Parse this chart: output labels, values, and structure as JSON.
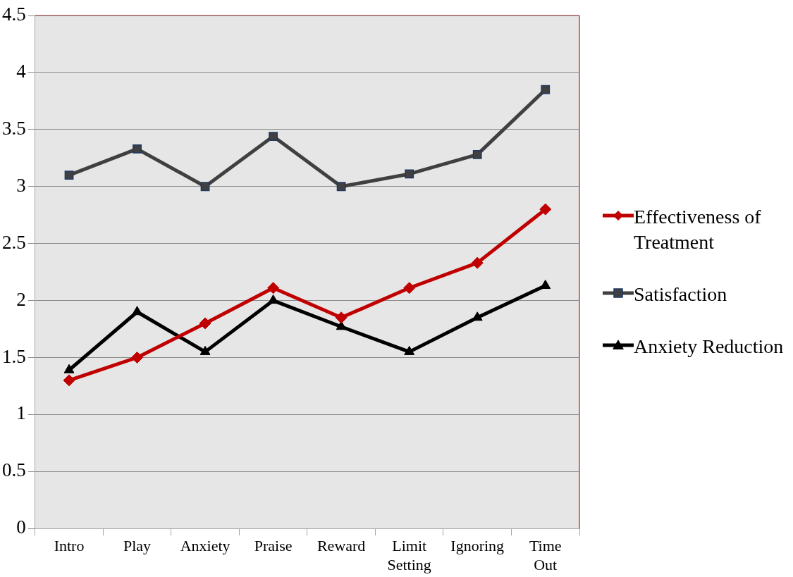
{
  "chart_data": {
    "type": "line",
    "categories": [
      "Intro",
      "Play",
      "Anxiety",
      "Praise",
      "Reward",
      "Limit Setting",
      "Ignoring",
      "Time Out"
    ],
    "series": [
      {
        "name": "Effectiveness of Treatment",
        "color": "#c00000",
        "marker": "diamond",
        "values": [
          1.3,
          1.5,
          1.8,
          2.11,
          1.85,
          2.11,
          2.33,
          2.8
        ]
      },
      {
        "name": "Satisfaction",
        "color": "#404040",
        "marker": "square",
        "values": [
          3.1,
          3.33,
          3.0,
          3.44,
          3.0,
          3.11,
          3.28,
          3.85
        ]
      },
      {
        "name": "Anxiety Reduction",
        "color": "#000000",
        "marker": "triangle",
        "values": [
          1.39,
          1.9,
          1.55,
          2.0,
          1.77,
          1.55,
          1.85,
          2.13
        ]
      }
    ],
    "ylim": [
      0,
      4.5
    ],
    "yticks": [
      0,
      0.5,
      1,
      1.5,
      2,
      2.5,
      3,
      3.5,
      4,
      4.5
    ],
    "grid": "y",
    "legend": "right",
    "line_style": "solid"
  }
}
